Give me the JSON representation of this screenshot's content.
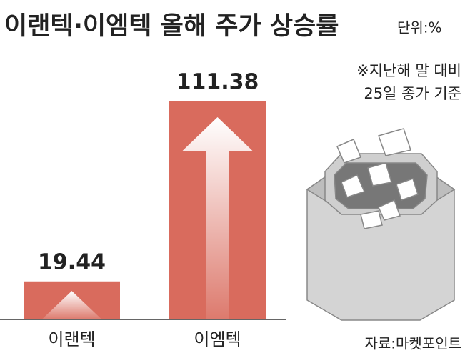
{
  "chart_data": {
    "type": "bar",
    "title": "이랜텍·이엠텍 올해 주가 상승률",
    "unit": "단위:%",
    "notes": [
      "※지난해 말 대비",
      "25일 종가 기준"
    ],
    "source": "자료:마켓포인트",
    "categories": [
      "이랜텍",
      "이엠텍"
    ],
    "values": [
      19.44,
      111.38
    ],
    "color": "#d96b5d"
  }
}
